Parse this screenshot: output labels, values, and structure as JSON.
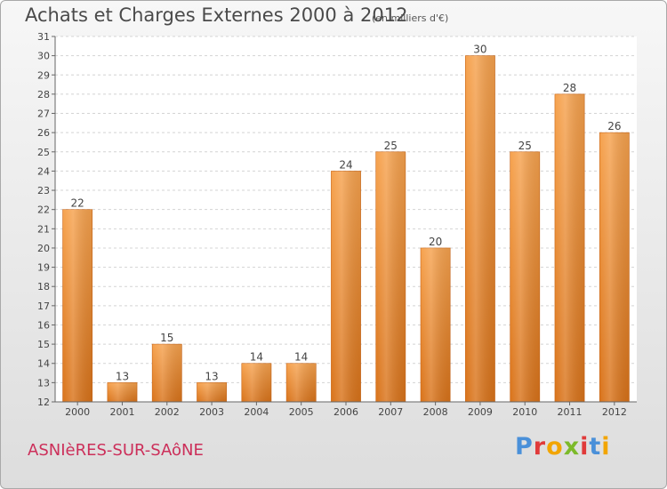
{
  "header": {
    "title": "Achats et Charges Externes 2000 à 2012",
    "subtitle": "(en milliers d'€)"
  },
  "footer": {
    "commune": "ASNIèRES-SUR-SAôNE",
    "logo": "Proxiti",
    "logo_colors": [
      "#4a90d9",
      "#e03a3a",
      "#f2a500",
      "#7cba2a",
      "#e03a3a",
      "#4a90d9",
      "#f2a500"
    ]
  },
  "chart_data": {
    "type": "bar",
    "categories": [
      "2000",
      "2001",
      "2002",
      "2003",
      "2004",
      "2005",
      "2006",
      "2007",
      "2008",
      "2009",
      "2010",
      "2011",
      "2012"
    ],
    "values": [
      22,
      13,
      15,
      13,
      14,
      14,
      24,
      25,
      20,
      30,
      25,
      28,
      26
    ],
    "yticks": [
      12,
      13,
      14,
      15,
      16,
      17,
      18,
      19,
      20,
      21,
      22,
      23,
      24,
      25,
      26,
      27,
      28,
      29,
      30,
      31
    ],
    "ylim": [
      12,
      31
    ],
    "grid": true,
    "bar_color": "#f28e2b",
    "title": "Achats et Charges Externes 2000 à 2012",
    "xlabel": "",
    "ylabel": ""
  }
}
